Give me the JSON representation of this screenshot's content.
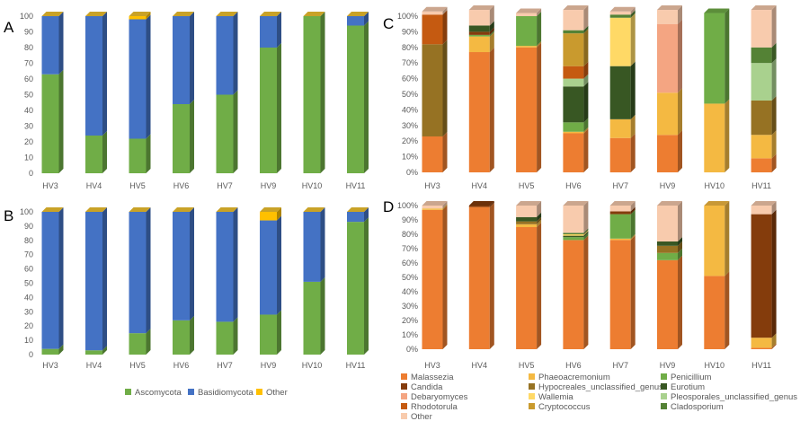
{
  "chart_data": [
    {
      "panel": "A",
      "type": "bar",
      "stacked": true,
      "categories": [
        "HV3",
        "HV4",
        "HV5",
        "HV6",
        "HV7",
        "HV9",
        "HV10",
        "HV11"
      ],
      "ylim": [
        0,
        100
      ],
      "yticks": [
        0,
        10,
        20,
        30,
        40,
        50,
        60,
        70,
        80,
        90,
        100
      ],
      "series": [
        {
          "name": "Ascomycota",
          "color": "#70ad47",
          "values": [
            63,
            24,
            22,
            44,
            50,
            80,
            100,
            94
          ]
        },
        {
          "name": "Basidiomycota",
          "color": "#4472c4",
          "values": [
            37,
            76,
            76,
            56,
            50,
            20,
            0,
            6
          ]
        },
        {
          "name": "Other",
          "color": "#ffc000",
          "values": [
            0,
            0,
            2,
            0,
            0,
            0,
            0,
            0
          ]
        }
      ]
    },
    {
      "panel": "B",
      "type": "bar",
      "stacked": true,
      "categories": [
        "HV3",
        "HV4",
        "HV5",
        "HV6",
        "HV7",
        "HV9",
        "HV10",
        "HV11"
      ],
      "ylim": [
        0,
        100
      ],
      "yticks": [
        0,
        10,
        20,
        30,
        40,
        50,
        60,
        70,
        80,
        90,
        100
      ],
      "series": [
        {
          "name": "Ascomycota",
          "color": "#70ad47",
          "values": [
            4,
            3,
            15,
            24,
            23,
            28,
            51,
            93
          ]
        },
        {
          "name": "Basidiomycota",
          "color": "#4472c4",
          "values": [
            96,
            97,
            85,
            76,
            77,
            66,
            49,
            7
          ]
        },
        {
          "name": "Other",
          "color": "#ffc000",
          "values": [
            0,
            0,
            0,
            0,
            0,
            6,
            0,
            0
          ]
        }
      ]
    },
    {
      "panel": "C",
      "type": "bar",
      "stacked": true,
      "percent": true,
      "categories": [
        "HV3",
        "HV4",
        "HV5",
        "HV6",
        "HV7",
        "HV9",
        "HV10",
        "HV11"
      ],
      "ylim": [
        0,
        100
      ],
      "yticks": [
        "0%",
        "10%",
        "20%",
        "30%",
        "40%",
        "50%",
        "60%",
        "70%",
        "80%",
        "90%",
        "100%"
      ],
      "series": [
        {
          "name": "Malassezia",
          "color": "#ed7d31",
          "values": [
            23,
            77,
            80,
            25,
            22,
            24,
            0,
            9
          ]
        },
        {
          "name": "Phaeoacremonium",
          "color": "#f4b942",
          "values": [
            0,
            10,
            1,
            1,
            12,
            27,
            44,
            15
          ]
        },
        {
          "name": "Penicillium",
          "color": "#70ad47",
          "values": [
            0,
            1,
            19,
            6,
            0,
            0,
            58,
            0
          ]
        },
        {
          "name": "Candida",
          "color": "#843c0c",
          "values": [
            0,
            2,
            0,
            0,
            0,
            0,
            0,
            0
          ]
        },
        {
          "name": "Hypocreales_unclassified_genus",
          "color": "#967223",
          "values": [
            59,
            0,
            0,
            0,
            0,
            0,
            0,
            22
          ]
        },
        {
          "name": "Eurotium",
          "color": "#385723",
          "values": [
            0,
            4,
            0,
            23,
            34,
            0,
            0,
            0
          ]
        },
        {
          "name": "Debaryomyces",
          "color": "#f4a582",
          "values": [
            0,
            0,
            0,
            0,
            0,
            44,
            0,
            0
          ]
        },
        {
          "name": "Wallemia",
          "color": "#ffd966",
          "values": [
            0,
            0,
            0,
            0,
            31,
            0,
            0,
            0
          ]
        },
        {
          "name": "Pleosporales_unclassified_genus",
          "color": "#a9d18e",
          "values": [
            0,
            0,
            0,
            5,
            0,
            0,
            0,
            24
          ]
        },
        {
          "name": "Rhodotorula",
          "color": "#c55a11",
          "values": [
            19,
            0,
            0,
            8,
            0,
            0,
            0,
            0
          ]
        },
        {
          "name": "Cryptococcus",
          "color": "#c99a2e",
          "values": [
            0,
            0,
            0,
            21,
            0,
            0,
            0,
            0
          ]
        },
        {
          "name": "Cladosporium",
          "color": "#548235",
          "values": [
            0,
            0,
            0,
            2,
            2,
            0,
            0,
            10
          ]
        },
        {
          "name": "Other",
          "color": "#f8cbad",
          "values": [
            2,
            10,
            2,
            13,
            2,
            9,
            0,
            24
          ]
        }
      ]
    },
    {
      "panel": "D",
      "type": "bar",
      "stacked": true,
      "percent": true,
      "categories": [
        "HV3",
        "HV4",
        "HV5",
        "HV6",
        "HV7",
        "HV9",
        "HV10",
        "HV11"
      ],
      "ylim": [
        0,
        100
      ],
      "yticks": [
        "0%",
        "10%",
        "20%",
        "30%",
        "40%",
        "50%",
        "60%",
        "70%",
        "80%",
        "90%",
        "100%"
      ],
      "series": [
        {
          "name": "Malassezia",
          "color": "#ed7d31",
          "values": [
            97,
            99,
            85,
            76,
            76,
            62,
            51,
            1
          ]
        },
        {
          "name": "Phaeoacremonium",
          "color": "#f4b942",
          "values": [
            1,
            0,
            2,
            0,
            1,
            0,
            49,
            7
          ]
        },
        {
          "name": "Penicillium",
          "color": "#70ad47",
          "values": [
            0,
            0,
            0,
            2,
            17,
            5,
            0,
            0
          ]
        },
        {
          "name": "Candida",
          "color": "#843c0c",
          "values": [
            0,
            1,
            0,
            0,
            2,
            0,
            0,
            86
          ]
        },
        {
          "name": "Hypocreales_unclassified_genus",
          "color": "#967223",
          "values": [
            0,
            0,
            2,
            0,
            0,
            5,
            0,
            0
          ]
        },
        {
          "name": "Eurotium",
          "color": "#385723",
          "values": [
            0,
            0,
            3,
            1,
            0,
            3,
            0,
            0
          ]
        },
        {
          "name": "Debaryomyces",
          "color": "#f4a582",
          "values": [
            0,
            0,
            0,
            0,
            0,
            0,
            0,
            0
          ]
        },
        {
          "name": "Wallemia",
          "color": "#ffd966",
          "values": [
            0,
            0,
            0,
            1,
            0,
            0,
            0,
            0
          ]
        },
        {
          "name": "Pleosporales_unclassified_genus",
          "color": "#a9d18e",
          "values": [
            0,
            0,
            0,
            0,
            0,
            0,
            0,
            0
          ]
        },
        {
          "name": "Rhodotorula",
          "color": "#c55a11",
          "values": [
            0,
            0,
            0,
            0,
            0,
            0,
            0,
            0
          ]
        },
        {
          "name": "Cryptococcus",
          "color": "#c99a2e",
          "values": [
            0,
            0,
            0,
            0,
            0,
            0,
            0,
            0
          ]
        },
        {
          "name": "Cladosporium",
          "color": "#548235",
          "values": [
            0,
            0,
            0,
            1,
            0,
            0,
            0,
            0
          ]
        },
        {
          "name": "Other",
          "color": "#f8cbad",
          "values": [
            2,
            0,
            8,
            19,
            4,
            25,
            0,
            6
          ]
        }
      ]
    }
  ],
  "panel_labels": {
    "A": "A",
    "B": "B",
    "C": "C",
    "D": "D"
  },
  "legend_left": [
    {
      "name": "Ascomycota",
      "color": "#70ad47"
    },
    {
      "name": "Basidiomycota",
      "color": "#4472c4"
    },
    {
      "name": "Other",
      "color": "#ffc000"
    }
  ],
  "legend_right": [
    {
      "name": "Malassezia",
      "color": "#ed7d31"
    },
    {
      "name": "Phaeoacremonium",
      "color": "#f4b942"
    },
    {
      "name": "Penicillium",
      "color": "#70ad47"
    },
    {
      "name": "Candida",
      "color": "#843c0c"
    },
    {
      "name": "Hypocreales_unclassified_genus",
      "color": "#967223"
    },
    {
      "name": "Eurotium",
      "color": "#385723"
    },
    {
      "name": "Debaryomyces",
      "color": "#f4a582"
    },
    {
      "name": "Wallemia",
      "color": "#ffd966"
    },
    {
      "name": "Pleosporales_unclassified_genus",
      "color": "#a9d18e"
    },
    {
      "name": "Rhodotorula",
      "color": "#c55a11"
    },
    {
      "name": "Cryptococcus",
      "color": "#c99a2e"
    },
    {
      "name": "Cladosporium",
      "color": "#548235"
    },
    {
      "name": "Other",
      "color": "#f8cbad"
    }
  ]
}
